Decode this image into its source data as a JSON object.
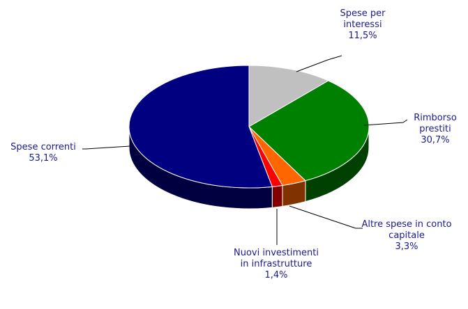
{
  "chart_data": {
    "type": "pie",
    "categories": [
      "Spese per interessi",
      "Rimborso prestiti",
      "Altre spese in conto capitale",
      "Nuovi investimenti in infrastrutture",
      "Spese correnti"
    ],
    "values": [
      11.5,
      30.7,
      3.3,
      1.4,
      53.1
    ],
    "value_labels": [
      "11,5%",
      "30,7%",
      "3,3%",
      "1,4%",
      "53,1%"
    ],
    "colors": [
      "#c0c0c0",
      "#008000",
      "#ff6600",
      "#ff0000",
      "#000080"
    ],
    "side_colors": [
      "#808080",
      "#004000",
      "#803300",
      "#800000",
      "#000040"
    ]
  }
}
